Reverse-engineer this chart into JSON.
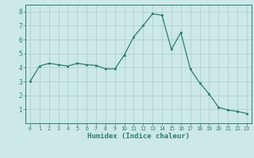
{
  "x": [
    0,
    1,
    2,
    3,
    4,
    5,
    6,
    7,
    8,
    9,
    10,
    11,
    12,
    13,
    14,
    15,
    16,
    17,
    18,
    19,
    20,
    21,
    22,
    23
  ],
  "y": [
    3.0,
    4.1,
    4.3,
    4.2,
    4.1,
    4.3,
    4.2,
    4.15,
    3.9,
    3.9,
    4.9,
    6.2,
    7.0,
    7.85,
    7.75,
    5.3,
    6.5,
    3.9,
    2.9,
    2.1,
    1.15,
    0.95,
    0.85,
    0.7
  ],
  "xlabel": "Humidex (Indice chaleur)",
  "bg_color": "#cce8e8",
  "grid_color": "#aacccc",
  "line_color": "#2e7d6e",
  "ylim": [
    0,
    8.5
  ],
  "xlim": [
    -0.5,
    23.5
  ],
  "yticks": [
    1,
    2,
    3,
    4,
    5,
    6,
    7,
    8
  ],
  "xticks": [
    0,
    1,
    2,
    3,
    4,
    5,
    6,
    7,
    8,
    9,
    10,
    11,
    12,
    13,
    14,
    15,
    16,
    17,
    18,
    19,
    20,
    21,
    22,
    23
  ]
}
